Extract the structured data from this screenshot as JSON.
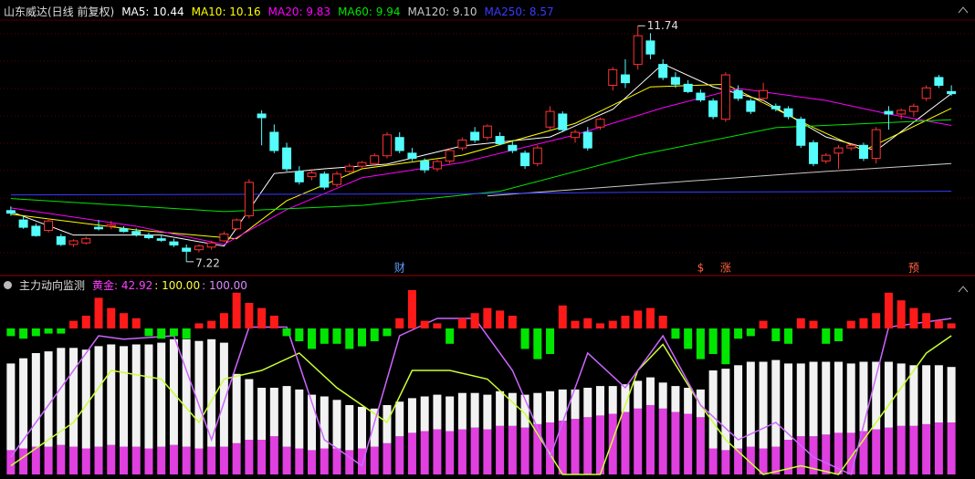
{
  "chart_data": [
    {
      "type": "candlestick",
      "title": "山东威达(日线 前复权)",
      "ylim": [
        6.99,
        11.85
      ],
      "up_color": "#ff3232",
      "down_color": "#54fcfc",
      "candles": {
        "open": [
          8.2,
          8.02,
          7.9,
          7.82,
          7.7,
          7.55,
          7.58,
          7.88,
          7.9,
          7.85,
          7.8,
          7.72,
          7.66,
          7.6,
          7.48,
          7.45,
          7.5,
          7.62,
          7.85,
          8.1,
          10.05,
          9.7,
          9.4,
          8.95,
          8.85,
          8.9,
          8.7,
          8.95,
          9.05,
          9.1,
          9.25,
          9.6,
          9.3,
          9.15,
          9.0,
          9.15,
          9.4,
          9.7,
          9.6,
          9.62,
          9.45,
          9.3,
          9.1,
          9.8,
          10.05,
          9.6,
          9.7,
          9.8,
          10.6,
          10.8,
          11.0,
          11.45,
          11.0,
          10.75,
          10.62,
          10.45,
          10.3,
          9.95,
          10.5,
          10.3,
          10.35,
          10.2,
          10.15,
          9.95,
          9.5,
          9.15,
          9.3,
          9.4,
          9.45,
          9.2,
          10.1,
          10.05,
          10.1,
          10.35,
          10.75,
          10.48
        ],
        "high": [
          8.28,
          8.1,
          7.95,
          8.05,
          7.75,
          7.65,
          7.7,
          8.02,
          8.0,
          7.9,
          7.86,
          7.78,
          7.72,
          7.66,
          7.55,
          7.55,
          7.62,
          7.8,
          8.05,
          8.8,
          10.12,
          9.85,
          9.5,
          9.05,
          9.0,
          8.95,
          8.95,
          9.1,
          9.15,
          9.3,
          9.7,
          9.7,
          9.4,
          9.2,
          9.18,
          9.4,
          9.6,
          9.8,
          9.85,
          9.7,
          9.55,
          9.35,
          9.45,
          10.2,
          10.1,
          9.75,
          9.8,
          9.98,
          10.95,
          11.1,
          11.74,
          11.6,
          11.1,
          10.85,
          10.7,
          10.52,
          10.35,
          10.85,
          10.6,
          10.35,
          10.65,
          10.25,
          10.2,
          10.0,
          9.55,
          9.3,
          9.45,
          9.48,
          9.5,
          9.8,
          10.2,
          10.15,
          10.25,
          10.6,
          10.8,
          10.6
        ],
        "low": [
          8.1,
          7.85,
          7.7,
          7.78,
          7.52,
          7.5,
          7.55,
          7.82,
          7.84,
          7.78,
          7.7,
          7.65,
          7.6,
          7.5,
          7.22,
          7.4,
          7.45,
          7.6,
          7.82,
          8.05,
          9.45,
          9.3,
          8.95,
          8.7,
          8.78,
          8.6,
          8.65,
          8.92,
          9.0,
          9.05,
          9.2,
          9.3,
          9.15,
          8.92,
          8.95,
          9.1,
          9.35,
          9.5,
          9.55,
          9.45,
          9.3,
          9.0,
          9.05,
          9.75,
          9.7,
          9.5,
          9.35,
          9.75,
          10.5,
          10.55,
          10.9,
          11.1,
          10.7,
          10.55,
          10.45,
          10.28,
          9.95,
          9.9,
          10.3,
          10.05,
          10.3,
          10.1,
          9.95,
          9.4,
          9.05,
          9.1,
          9.0,
          9.35,
          9.15,
          9.1,
          9.75,
          9.95,
          10.0,
          10.3,
          10.55,
          10.4
        ],
        "close": [
          8.15,
          7.88,
          7.72,
          8.0,
          7.55,
          7.62,
          7.66,
          7.85,
          7.93,
          7.8,
          7.74,
          7.68,
          7.63,
          7.54,
          7.42,
          7.52,
          7.58,
          7.75,
          8.02,
          8.74,
          9.98,
          9.35,
          9.0,
          8.75,
          8.92,
          8.65,
          8.9,
          9.05,
          9.12,
          9.25,
          9.65,
          9.35,
          9.2,
          8.98,
          9.14,
          9.35,
          9.55,
          9.55,
          9.82,
          9.48,
          9.35,
          9.06,
          9.4,
          10.1,
          9.75,
          9.7,
          9.4,
          9.95,
          10.9,
          10.65,
          11.55,
          11.2,
          10.75,
          10.62,
          10.48,
          10.32,
          10.0,
          10.8,
          10.35,
          10.1,
          10.5,
          10.15,
          10.0,
          9.45,
          9.1,
          9.26,
          9.4,
          9.45,
          9.2,
          9.75,
          10.05,
          10.12,
          10.2,
          10.55,
          10.6,
          10.44
        ]
      },
      "series": [
        {
          "name": "MA5: 10.44",
          "color": "#ffffff",
          "x": [
            0,
            5,
            12,
            17,
            21,
            25,
            30,
            36,
            43,
            48,
            52,
            56,
            60,
            65,
            69,
            75
          ],
          "values": [
            8.18,
            7.73,
            7.73,
            7.52,
            8.91,
            9.0,
            9.09,
            9.44,
            9.61,
            10.14,
            11.01,
            10.57,
            10.31,
            9.61,
            9.35,
            10.44
          ]
        },
        {
          "name": "MA10: 10.16",
          "color": "#ffff00",
          "x": [
            0,
            10,
            18,
            22,
            28,
            36,
            45,
            51,
            57,
            64,
            68,
            75
          ],
          "values": [
            8.13,
            7.83,
            7.66,
            8.39,
            9.0,
            9.26,
            9.87,
            10.57,
            10.62,
            9.79,
            9.35,
            10.16
          ]
        },
        {
          "name": "MA20: 9.83",
          "color": "#ff00ff",
          "x": [
            0,
            10,
            17,
            22,
            28,
            36,
            45,
            52,
            58,
            65,
            70,
            75
          ],
          "values": [
            8.25,
            7.9,
            7.55,
            8.22,
            8.83,
            9.12,
            9.65,
            10.17,
            10.54,
            10.31,
            10.05,
            9.83
          ]
        },
        {
          "name": "MA60: 9.94",
          "color": "#00e600",
          "x": [
            0,
            17,
            28,
            39,
            50,
            61,
            75
          ],
          "values": [
            8.43,
            8.18,
            8.3,
            8.57,
            9.26,
            9.79,
            9.94
          ]
        },
        {
          "name": "MA120: 9.10",
          "color": "#c8c8c8",
          "x": [
            38,
            55,
            65,
            75
          ],
          "values": [
            8.48,
            8.78,
            8.95,
            9.1
          ]
        },
        {
          "name": "MA250: 8.57",
          "color": "#3a3aff",
          "x": [
            0,
            35,
            50,
            75
          ],
          "values": [
            8.5,
            8.52,
            8.55,
            8.57
          ]
        }
      ],
      "event_markers": [
        null,
        null,
        null,
        null,
        null,
        null,
        null,
        null,
        null,
        null,
        null,
        null,
        null,
        null,
        null,
        null,
        null,
        null,
        null,
        null,
        null,
        null,
        null,
        null,
        null,
        null,
        null,
        null,
        null,
        null,
        null,
        "财",
        null,
        null,
        null,
        null,
        null,
        null,
        null,
        null,
        null,
        null,
        null,
        null,
        null,
        null,
        null,
        null,
        null,
        null,
        null,
        null,
        null,
        null,
        null,
        "$",
        null,
        "涨",
        null,
        null,
        null,
        null,
        null,
        null,
        null,
        null,
        null,
        null,
        null,
        null,
        null,
        null,
        "预",
        null,
        null,
        null
      ]
    },
    {
      "type": "bar",
      "title": "主力动向监测",
      "ylim": [
        -15,
        15
      ],
      "positive_color": "#ff1a1a",
      "negative_color": "#00e600",
      "values": [
        -3,
        -4,
        -3,
        -2,
        -2,
        3,
        5,
        12,
        8,
        6,
        4,
        -3,
        -4,
        -3,
        -4,
        2,
        3,
        6,
        14,
        10,
        8,
        5,
        -3,
        -5,
        -8,
        -6,
        -6,
        -8,
        -7,
        -5,
        -3,
        4,
        15,
        3,
        2,
        -6,
        4,
        6,
        8,
        7,
        5,
        -8,
        -12,
        -10,
        9,
        3,
        4,
        2,
        3,
        5,
        7,
        8,
        5,
        -4,
        -8,
        -12,
        -10,
        -14,
        -4,
        -3,
        3,
        -5,
        -6,
        4,
        3,
        -6,
        -5,
        3,
        4,
        6,
        14,
        11,
        8,
        6,
        3,
        2
      ]
    },
    {
      "type": "stacked_bar",
      "legend_values": [
        "黄金: 42.92",
        ": 100.00",
        ": 100.00"
      ],
      "ylim": [
        0,
        100
      ],
      "series": [
        {
          "color": "#e040e0",
          "values": [
            14,
            15,
            16,
            16,
            17,
            16,
            15,
            16,
            17,
            16,
            16,
            15,
            16,
            17,
            16,
            15,
            16,
            16,
            18,
            20,
            20,
            22,
            16,
            15,
            14,
            15,
            15,
            14,
            15,
            16,
            18,
            22,
            24,
            25,
            26,
            25,
            26,
            27,
            26,
            28,
            28,
            27,
            29,
            30,
            31,
            32,
            33,
            34,
            35,
            36,
            38,
            40,
            38,
            36,
            35,
            33,
            15,
            14,
            15,
            16,
            15,
            16,
            20,
            22,
            22,
            23,
            24,
            24,
            25,
            26,
            27,
            28,
            28,
            29,
            30,
            30
          ]
        },
        {
          "color": "#f2f2f2",
          "values": [
            50,
            52,
            54,
            55,
            56,
            57,
            57,
            58,
            58,
            58,
            59,
            60,
            60,
            61,
            62,
            62,
            62,
            60,
            40,
            35,
            30,
            28,
            35,
            34,
            32,
            30,
            28,
            26,
            24,
            22,
            22,
            20,
            20,
            20,
            20,
            20,
            21,
            20,
            20,
            20,
            19,
            19,
            18,
            18,
            18,
            17,
            17,
            17,
            16,
            16,
            16,
            16,
            15,
            15,
            15,
            16,
            45,
            47,
            48,
            49,
            50,
            50,
            44,
            42,
            43,
            42,
            41,
            40,
            40,
            39,
            38,
            36,
            35,
            34,
            33,
            32
          ]
        }
      ],
      "lines": [
        {
          "color": "#ccff33",
          "x": [
            0,
            5,
            8,
            12,
            15,
            17,
            20,
            23,
            26,
            30,
            32,
            35,
            38,
            41,
            44,
            47,
            50,
            52,
            55,
            57,
            60,
            63,
            66,
            70,
            73,
            75
          ],
          "values": [
            5,
            30,
            60,
            55,
            30,
            55,
            60,
            70,
            50,
            30,
            60,
            60,
            55,
            35,
            0,
            0,
            60,
            75,
            40,
            20,
            0,
            5,
            0,
            40,
            70,
            80
          ]
        },
        {
          "color": "#cc66ff",
          "x": [
            0,
            7,
            9,
            13,
            16,
            19,
            22,
            25,
            28,
            31,
            34,
            37,
            40,
            43,
            46,
            49,
            52,
            55,
            58,
            61,
            64,
            67,
            70,
            75
          ],
          "values": [
            10,
            80,
            78,
            80,
            20,
            85,
            85,
            20,
            5,
            80,
            90,
            90,
            60,
            10,
            70,
            50,
            80,
            40,
            20,
            30,
            10,
            0,
            85,
            90
          ]
        }
      ]
    }
  ]
}
